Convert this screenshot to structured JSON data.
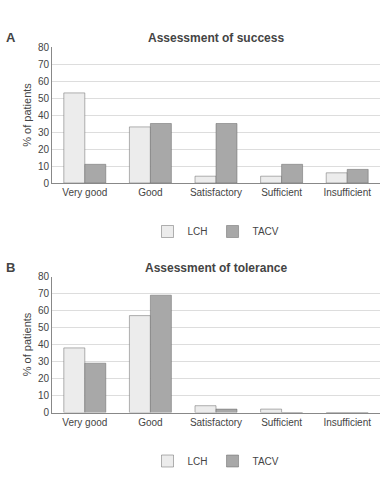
{
  "chart_data": [
    {
      "type": "bar",
      "title": "Assessment of success",
      "annotations": [
        "A"
      ],
      "categories": [
        "Very good",
        "Good",
        "Satisfactory",
        "Sufficient",
        "Insufficient"
      ],
      "series": [
        {
          "name": "LCH",
          "color": "#ececec",
          "values": [
            53,
            33,
            4,
            4,
            6
          ]
        },
        {
          "name": "TACV",
          "color": "#a8a8a8",
          "values": [
            11,
            35,
            35,
            11,
            8
          ]
        }
      ],
      "ylabel": "% of patients",
      "ylim": [
        0,
        80
      ],
      "yticks": [
        0,
        10,
        20,
        30,
        40,
        50,
        60,
        70,
        80
      ],
      "grid": true,
      "legend": "bottom"
    },
    {
      "type": "bar",
      "title": "Assessment of tolerance",
      "annotations": [
        "B"
      ],
      "categories": [
        "Very good",
        "Good",
        "Satisfactory",
        "Sufficient",
        "Insufficient"
      ],
      "series": [
        {
          "name": "LCH",
          "color": "#ececec",
          "values": [
            38,
            57,
            4,
            2,
            0
          ]
        },
        {
          "name": "TACV",
          "color": "#a8a8a8",
          "values": [
            29,
            69,
            2,
            0,
            0
          ]
        }
      ],
      "ylabel": "% of patients",
      "ylim": [
        0,
        80
      ],
      "yticks": [
        0,
        10,
        20,
        30,
        40,
        50,
        60,
        70,
        80
      ],
      "grid": true,
      "legend": "bottom"
    }
  ]
}
